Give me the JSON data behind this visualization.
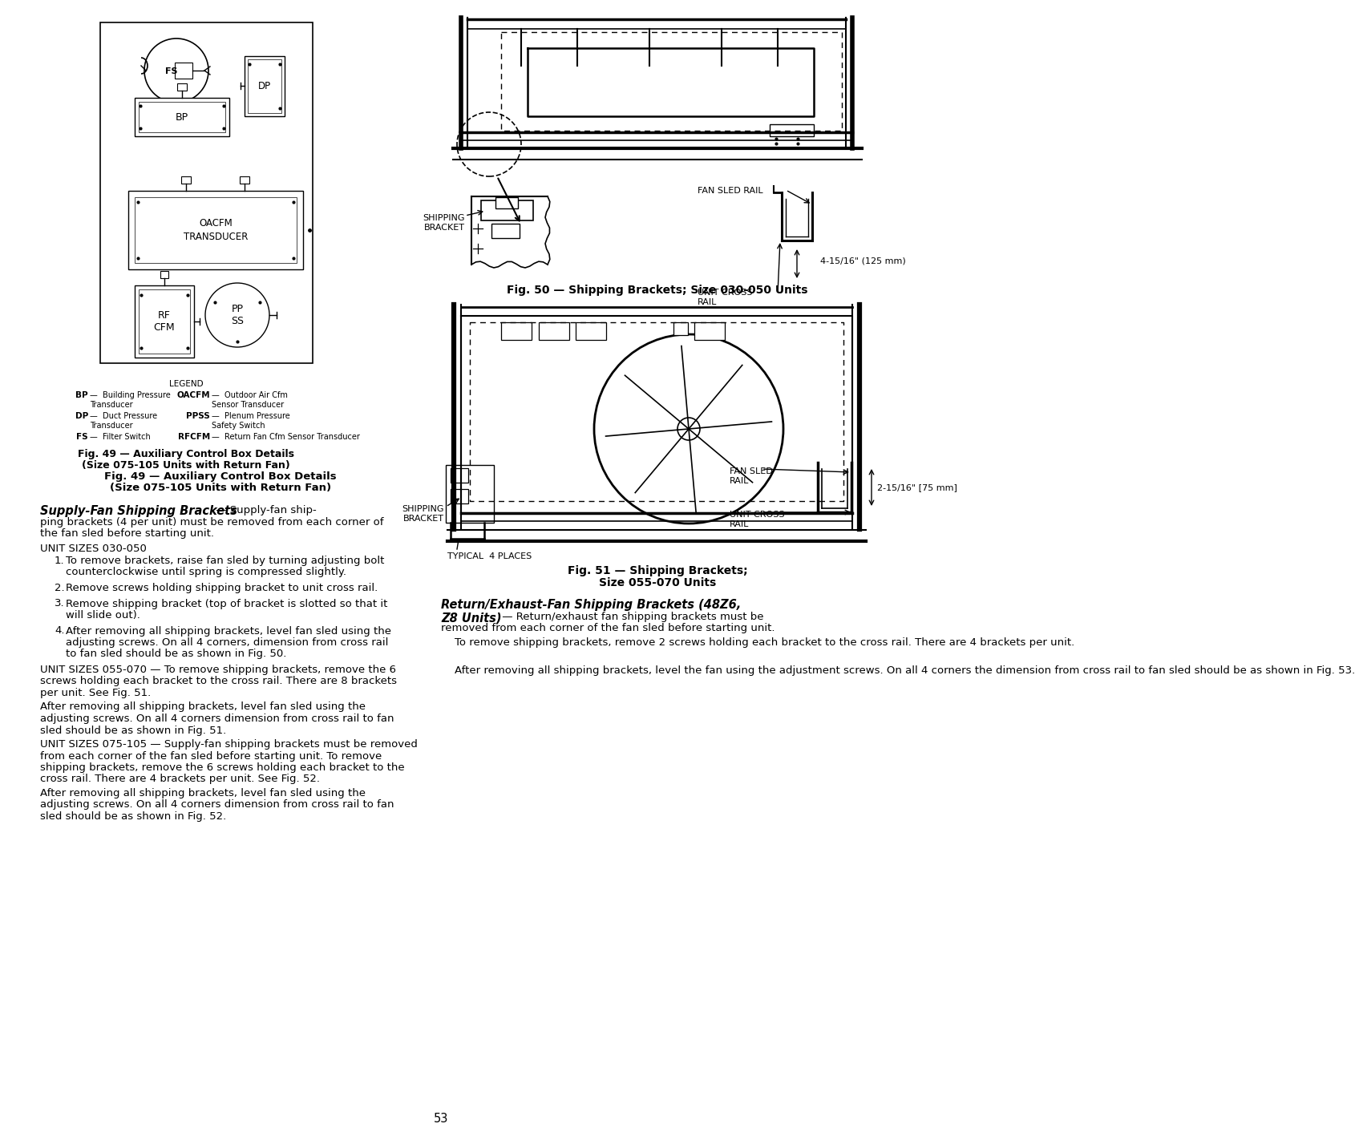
{
  "page_bg": "#ffffff",
  "text_color": "#000000",
  "page_number": "53",
  "fig49_caption_line1": "Fig. 49 — Auxiliary Control Box Details",
  "fig49_caption_line2": "(Size 075-105 Units with Return Fan)",
  "fig50_caption": "Fig. 50 — Shipping Brackets; Size 030-050 Units",
  "fig51_caption_line1": "Fig. 51 — Shipping Brackets;",
  "fig51_caption_line2": "Size 055-070 Units",
  "legend_title": "LEGEND",
  "legend_items": [
    [
      "BP",
      "Building Pressure\nTransducer",
      "OACFM",
      "Outdoor Air Cfm\nSensor Transducer"
    ],
    [
      "DP",
      "Duct Pressure\nTransducer",
      "PPSS",
      "Plenum Pressure\nSafety Switch"
    ],
    [
      "FS",
      "Filter Switch",
      "RFCFM",
      "Return Fan Cfm Sensor Transducer"
    ]
  ],
  "supply_heading": "Supply-Fan Shipping Brackets",
  "supply_suffix": " — Supply-fan ship-ping brackets (4 per unit) must be removed from each corner of the fan sled before starting unit.",
  "return_heading_line1": "Return/Exhaust-Fan Shipping Brackets (48Z6,",
  "return_heading_line2": "Z8 Units)",
  "return_suffix": " — Return/exhaust fan shipping brackets must be removed from each corner of the fan sled before starting unit.",
  "unit_030_050": "UNIT SIZES 030-050",
  "items_030": [
    "To remove brackets, raise fan sled by turning adjusting bolt counterclockwise until spring is compressed slightly.",
    "Remove screws holding shipping bracket to unit cross rail.",
    "Remove shipping bracket (top of bracket is slotted so that it will slide out).",
    "After removing all shipping brackets, level fan sled using the adjusting screws. On all 4 corners, dimension from cross rail to fan sled should be as shown in Fig. 50."
  ],
  "para_055_070": "UNIT SIZES 055-070 — To remove shipping brackets, remove the 6 screws holding each bracket to the cross rail. There are 8 brackets per unit. See Fig. 51.",
  "para_055_070b": "After removing all shipping brackets, level fan sled using the adjusting screws. On all 4 corners dimension from cross rail to fan sled should be as shown in Fig. 51.",
  "para_075_105": "UNIT SIZES 075-105 — Supply-fan shipping brackets must be removed from each corner of the fan sled before starting unit. To remove shipping brackets, remove the 6 screws holding each bracket to the cross rail. There are 4 brackets per unit. See Fig. 52.",
  "para_075_105b": "After removing all shipping brackets, level fan sled using the adjusting screws. On all 4 corners dimension from cross rail to fan sled should be as shown in Fig. 52.",
  "return_para1": "To remove shipping brackets, remove 2 screws holding each bracket to the cross rail. There are 4 brackets per unit.",
  "return_para2": "After removing all shipping brackets, level the fan using the adjustment screws. On all 4 corners the dimension from cross rail to fan sled should be as shown in Fig. 53."
}
